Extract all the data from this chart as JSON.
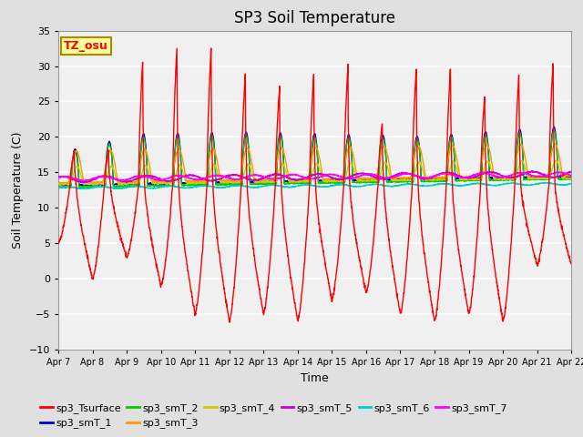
{
  "title": "SP3 Soil Temperature",
  "xlabel": "Time",
  "ylabel": "Soil Temperature (C)",
  "ylim": [
    -10,
    35
  ],
  "x_tick_labels": [
    "Apr 7",
    "Apr 8",
    "Apr 9",
    "Apr 10",
    "Apr 11",
    "Apr 12",
    "Apr 13",
    "Apr 14",
    "Apr 15",
    "Apr 16",
    "Apr 17",
    "Apr 18",
    "Apr 19",
    "Apr 20",
    "Apr 21",
    "Apr 22"
  ],
  "annotation_text": "TZ_osu",
  "annotation_bg": "#FFFF99",
  "annotation_border": "#AA8800",
  "series_colors": {
    "sp3_Tsurface": "#FF0000",
    "sp3_smT_1": "#0000CC",
    "sp3_smT_2": "#00CC00",
    "sp3_smT_3": "#FF9900",
    "sp3_smT_4": "#CCCC00",
    "sp3_smT_5": "#CC00CC",
    "sp3_smT_6": "#00CCCC",
    "sp3_smT_7": "#FF00FF"
  },
  "background_color": "#E0E0E0",
  "plot_bg": "#F0F0F0",
  "grid_color": "#FFFFFF",
  "title_fontsize": 12,
  "axis_label_fontsize": 9,
  "tick_fontsize": 8,
  "legend_fontsize": 8
}
